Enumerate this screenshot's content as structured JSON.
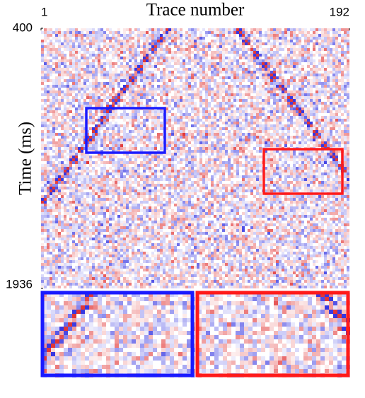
{
  "chart_data": {
    "type": "seismic",
    "title": "Trace number",
    "y_label": "Time (ms)",
    "xlim": [
      1,
      192
    ],
    "xticks": [
      1,
      192
    ],
    "ylim": [
      400,
      1936
    ],
    "yticks": [
      400,
      1936
    ]
  }
}
